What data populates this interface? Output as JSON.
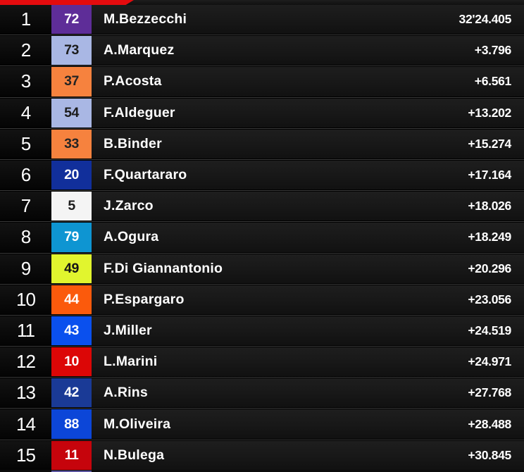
{
  "header": {
    "accent_bar_color": "#e40b0e"
  },
  "table": {
    "rows": [
      {
        "position": "1",
        "rider_number": "72",
        "rider_name": "M.Bezzecchi",
        "gap": "32'24.405",
        "box_bg": "#5e2d98",
        "box_fg": "#ffffff"
      },
      {
        "position": "2",
        "rider_number": "73",
        "rider_name": "A.Marquez",
        "gap": "+3.796",
        "box_bg": "#a9b7e4",
        "box_fg": "#1c1c1c"
      },
      {
        "position": "3",
        "rider_number": "37",
        "rider_name": "P.Acosta",
        "gap": "+6.561",
        "box_bg": "#f6823e",
        "box_fg": "#242424"
      },
      {
        "position": "4",
        "rider_number": "54",
        "rider_name": "F.Aldeguer",
        "gap": "+13.202",
        "box_bg": "#a9b7e4",
        "box_fg": "#1c1c1c"
      },
      {
        "position": "5",
        "rider_number": "33",
        "rider_name": "B.Binder",
        "gap": "+15.274",
        "box_bg": "#f6823e",
        "box_fg": "#242424"
      },
      {
        "position": "6",
        "rider_number": "20",
        "rider_name": "F.Quartararo",
        "gap": "+17.164",
        "box_bg": "#112f9b",
        "box_fg": "#ffffff"
      },
      {
        "position": "7",
        "rider_number": "5",
        "rider_name": "J.Zarco",
        "gap": "+18.026",
        "box_bg": "#f4f4f4",
        "box_fg": "#1c1c1c"
      },
      {
        "position": "8",
        "rider_number": "79",
        "rider_name": "A.Ogura",
        "gap": "+18.249",
        "box_bg": "#0e95d2",
        "box_fg": "#ffffff"
      },
      {
        "position": "9",
        "rider_number": "49",
        "rider_name": "F.Di Giannantonio",
        "gap": "+20.296",
        "box_bg": "#e1f52e",
        "box_fg": "#161616"
      },
      {
        "position": "10",
        "rider_number": "44",
        "rider_name": "P.Espargaro",
        "gap": "+23.056",
        "box_bg": "#fb5a0c",
        "box_fg": "#ffffff"
      },
      {
        "position": "11",
        "rider_number": "43",
        "rider_name": "J.Miller",
        "gap": "+24.519",
        "box_bg": "#0a50ee",
        "box_fg": "#ffffff"
      },
      {
        "position": "12",
        "rider_number": "10",
        "rider_name": "L.Marini",
        "gap": "+24.971",
        "box_bg": "#dc0606",
        "box_fg": "#ffffff"
      },
      {
        "position": "13",
        "rider_number": "42",
        "rider_name": "A.Rins",
        "gap": "+27.768",
        "box_bg": "#1a3a96",
        "box_fg": "#ffffff"
      },
      {
        "position": "14",
        "rider_number": "88",
        "rider_name": "M.Oliveira",
        "gap": "+28.488",
        "box_bg": "#0c46d8",
        "box_fg": "#ffffff"
      },
      {
        "position": "15",
        "rider_number": "11",
        "rider_name": "N.Bulega",
        "gap": "+30.845",
        "box_bg": "#c6040c",
        "box_fg": "#ffffff"
      }
    ]
  },
  "footer": {
    "next_row_peek_color": "#5c55a0"
  }
}
